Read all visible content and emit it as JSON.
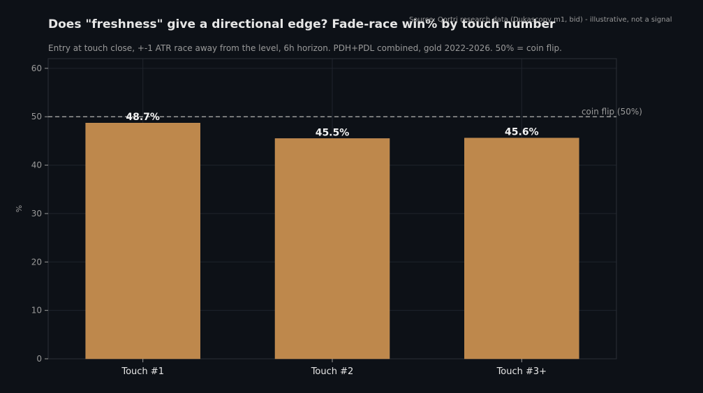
{
  "chart_data": {
    "type": "bar",
    "title": "Does \"freshness\" give a directional edge? Fade-race win% by touch number",
    "subtitle": "Entry at touch close, +-1 ATR race away from the level, 6h horizon. PDH+PDL combined, gold 2022-2026. 50% = coin flip.",
    "source": "Source: Qortri research data (Dukascopy m1, bid) - illustrative, not a signal",
    "categories": [
      "Touch #1",
      "Touch #2",
      "Touch #3+"
    ],
    "values": [
      48.7,
      45.5,
      45.6
    ],
    "value_labels": [
      "48.7%",
      "45.5%",
      "45.6%"
    ],
    "ylabel": "%",
    "xlabel": "",
    "ylim": [
      0,
      62
    ],
    "yticks": [
      0,
      10,
      20,
      30,
      40,
      50,
      60
    ],
    "grid": true,
    "reference_line": {
      "value": 50,
      "label": "coin flip (50%)"
    },
    "colors": {
      "bar": "#be884c",
      "background": "#0d1117",
      "grid": "#1f242c",
      "axis_text": "#9a9a9a",
      "category_text": "#e6e6e6",
      "value_label": "#f2f2f2",
      "reference_line": "#9a9a9a"
    }
  }
}
